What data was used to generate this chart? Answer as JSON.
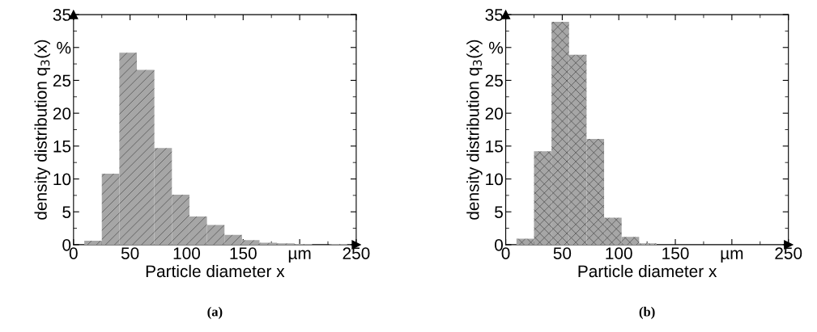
{
  "chart_data": [
    {
      "type": "histogram",
      "xlabel": "Particle diameter x",
      "ylabel": "density distribution q$_{3}$(x)",
      "annotations": [
        "(a)"
      ],
      "bins": [
        9.5,
        25,
        40.5,
        56,
        71.5,
        87,
        102.5,
        118,
        133.5,
        149,
        164.5,
        180,
        195.5,
        211,
        226.5,
        242
      ],
      "values": [
        0.6,
        10.8,
        29.2,
        26.6,
        14.7,
        7.6,
        4.3,
        3.0,
        1.5,
        0.7,
        0.3,
        0.2,
        0.1,
        0,
        0.1
      ],
      "color": "#a6a6a6",
      "xlim": [
        0,
        250
      ],
      "xticks": [
        0,
        50,
        100,
        150,
        {
          "value": 200,
          "label": "µm"
        },
        250
      ],
      "ylim": [
        0,
        35
      ],
      "yticks": [
        0,
        5,
        10,
        15,
        20,
        25,
        {
          "value": 30,
          "label": "%"
        },
        35
      ],
      "grid": false,
      "legend": false
    },
    {
      "type": "histogram",
      "xlabel": "Particle diameter x",
      "ylabel": "density distribution q$_{3}$(x)",
      "annotations": [
        "(b)"
      ],
      "bins": [
        9.5,
        25,
        40.5,
        56,
        71.5,
        87,
        102.5,
        118,
        133.5
      ],
      "values": [
        0.9,
        14.2,
        33.9,
        28.9,
        16.1,
        4.1,
        1.2,
        0.2
      ],
      "color": "#a6a6a6",
      "xlim": [
        0,
        250
      ],
      "xticks": [
        0,
        50,
        100,
        150,
        {
          "value": 200,
          "label": "µm"
        },
        250
      ],
      "ylim": [
        0,
        35
      ],
      "yticks": [
        0,
        5,
        10,
        15,
        20,
        25,
        {
          "value": 30,
          "label": "%"
        },
        35
      ],
      "grid": false,
      "legend": false
    }
  ]
}
